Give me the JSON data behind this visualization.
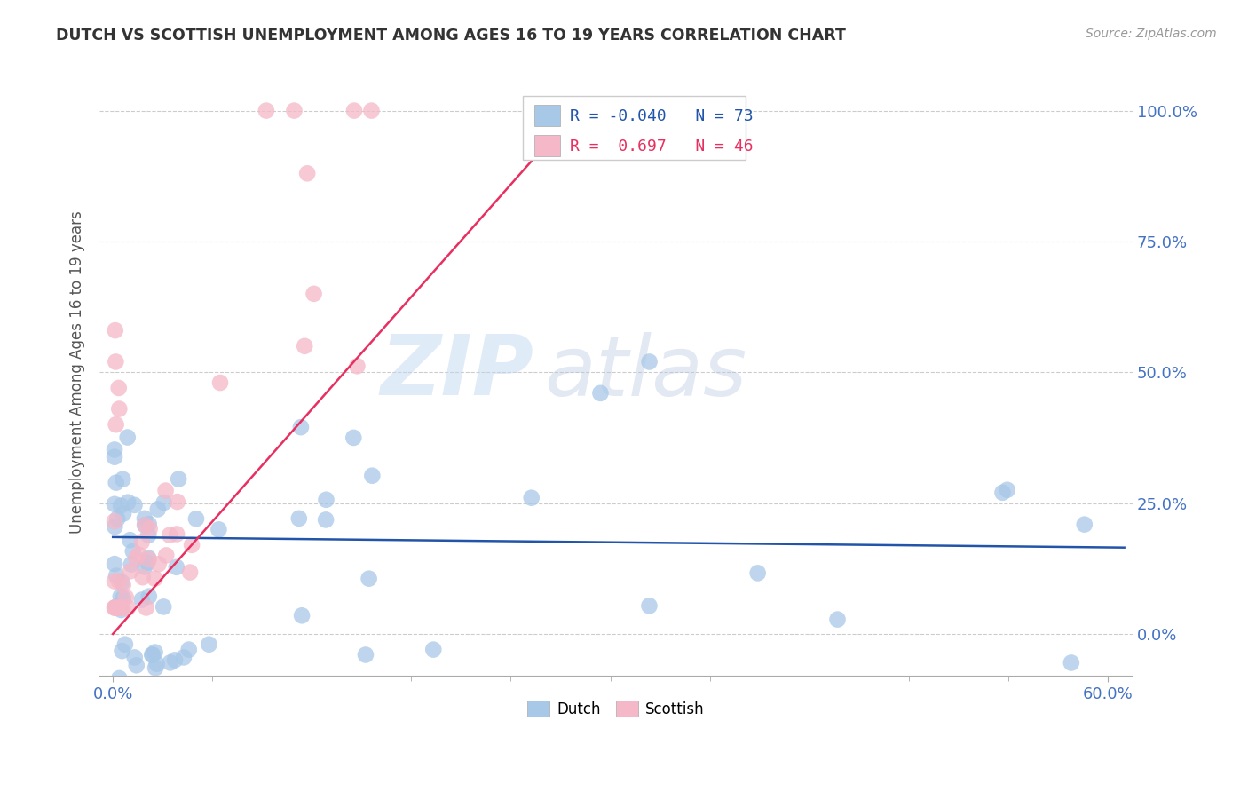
{
  "title": "DUTCH VS SCOTTISH UNEMPLOYMENT AMONG AGES 16 TO 19 YEARS CORRELATION CHART",
  "source": "Source: ZipAtlas.com",
  "ylabel": "Unemployment Among Ages 16 to 19 years",
  "yticks_labels": [
    "0.0%",
    "25.0%",
    "50.0%",
    "75.0%",
    "100.0%"
  ],
  "ytick_vals": [
    0.0,
    0.25,
    0.5,
    0.75,
    1.0
  ],
  "xtick_labels": [
    "0.0%",
    "60.0%"
  ],
  "xtick_vals": [
    0.0,
    0.6
  ],
  "legend_dutch_R": "-0.040",
  "legend_dutch_N": "73",
  "legend_scottish_R": "0.697",
  "legend_scottish_N": "46",
  "dutch_color": "#a8c8e8",
  "scottish_color": "#f5b8c8",
  "dutch_line_color": "#2255aa",
  "scottish_line_color": "#e83060",
  "watermark_zip": "ZIP",
  "watermark_atlas": "atlas",
  "background_color": "#ffffff",
  "xlim": [
    -0.008,
    0.615
  ],
  "ylim": [
    -0.08,
    1.08
  ],
  "dutch_trend_x": [
    0.0,
    0.61
  ],
  "dutch_trend_y": [
    0.185,
    0.165
  ],
  "scottish_trend_x": [
    0.0,
    0.285
  ],
  "scottish_trend_y": [
    0.0,
    1.02
  ]
}
